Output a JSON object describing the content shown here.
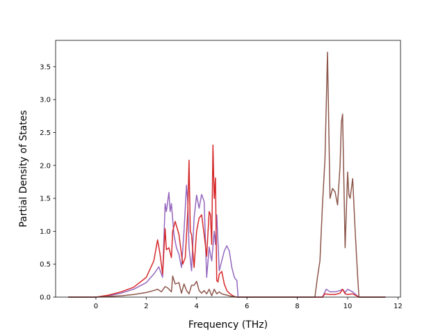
{
  "chart_data": {
    "type": "line",
    "title": "",
    "xlabel": "Frequency (THz)",
    "ylabel": "Partial Density of States",
    "xlim": [
      -1.6,
      12.1
    ],
    "ylim": [
      0,
      3.9
    ],
    "xticks": [
      0,
      2,
      4,
      6,
      8,
      10,
      12
    ],
    "xtick_labels": [
      "0",
      "2",
      "4",
      "6",
      "8",
      "10",
      "12"
    ],
    "yticks": [
      0.0,
      0.5,
      1.0,
      1.5,
      2.0,
      2.5,
      3.0,
      3.5
    ],
    "ytick_labels": [
      "0.0",
      "0.5",
      "1.0",
      "1.5",
      "2.0",
      "2.5",
      "3.0",
      "3.5"
    ],
    "grid": false,
    "legend": "none",
    "series": [
      {
        "color": "#9467bd",
        "x": [
          -1.1,
          0.0,
          0.5,
          1.0,
          1.5,
          2.0,
          2.3,
          2.5,
          2.65,
          2.75,
          2.8,
          2.9,
          2.95,
          3.0,
          3.1,
          3.2,
          3.3,
          3.4,
          3.5,
          3.6,
          3.65,
          3.7,
          3.8,
          3.9,
          4.0,
          4.1,
          4.2,
          4.3,
          4.4,
          4.5,
          4.55,
          4.6,
          4.7,
          4.75,
          4.8,
          4.9,
          5.0,
          5.1,
          5.2,
          5.3,
          5.4,
          5.5,
          5.6,
          5.65,
          5.8,
          8.6,
          9.0,
          9.15,
          9.3,
          9.5,
          9.7,
          9.8,
          9.9,
          10.0,
          10.2,
          10.35,
          10.45,
          11.5
        ],
        "y": [
          0.0,
          0.0,
          0.02,
          0.06,
          0.12,
          0.22,
          0.35,
          0.46,
          0.3,
          1.42,
          1.3,
          1.59,
          1.3,
          1.42,
          0.95,
          0.75,
          0.65,
          0.45,
          1.0,
          1.7,
          1.45,
          0.75,
          0.4,
          1.2,
          1.55,
          1.35,
          1.56,
          1.45,
          0.3,
          0.76,
          0.65,
          0.55,
          1.0,
          0.8,
          1.25,
          0.4,
          0.55,
          0.7,
          0.78,
          0.7,
          0.45,
          0.3,
          0.25,
          0.0,
          0.0,
          0.0,
          0.0,
          0.12,
          0.08,
          0.08,
          0.1,
          0.12,
          0.07,
          0.12,
          0.08,
          0.03,
          0.0,
          0.0
        ]
      },
      {
        "color": "#d62728",
        "x": [
          -1.1,
          0.0,
          0.5,
          1.0,
          1.5,
          2.0,
          2.3,
          2.45,
          2.55,
          2.65,
          2.75,
          2.8,
          2.9,
          3.0,
          3.05,
          3.15,
          3.3,
          3.45,
          3.55,
          3.65,
          3.7,
          3.75,
          3.8,
          3.9,
          4.0,
          4.1,
          4.2,
          4.3,
          4.4,
          4.5,
          4.55,
          4.6,
          4.65,
          4.7,
          4.75,
          4.8,
          4.85,
          4.9,
          5.0,
          5.1,
          5.2,
          5.3,
          5.4,
          5.5,
          5.6,
          5.8,
          8.6,
          9.0,
          9.1,
          9.3,
          9.5,
          9.7,
          9.8,
          9.9,
          10.0,
          10.2,
          10.35,
          10.45,
          11.5
        ],
        "y": [
          0.0,
          0.0,
          0.03,
          0.08,
          0.15,
          0.3,
          0.55,
          0.87,
          0.65,
          0.35,
          1.04,
          0.72,
          0.75,
          0.6,
          1.0,
          1.15,
          0.95,
          0.5,
          0.6,
          1.3,
          2.08,
          1.0,
          0.95,
          0.45,
          1.0,
          1.2,
          1.25,
          0.95,
          0.62,
          1.3,
          1.25,
          0.8,
          2.31,
          1.5,
          1.81,
          0.25,
          0.23,
          0.35,
          0.39,
          0.2,
          0.1,
          0.06,
          0.03,
          0.01,
          0.0,
          0.0,
          0.0,
          0.0,
          0.05,
          0.04,
          0.04,
          0.06,
          0.12,
          0.05,
          0.04,
          0.05,
          0.02,
          0.0,
          0.0
        ]
      },
      {
        "color": "#8c564b",
        "x": [
          -1.1,
          0.0,
          0.5,
          1.0,
          1.5,
          2.0,
          2.3,
          2.45,
          2.6,
          2.75,
          2.85,
          3.0,
          3.05,
          3.15,
          3.3,
          3.4,
          3.5,
          3.6,
          3.7,
          3.8,
          3.9,
          4.0,
          4.1,
          4.2,
          4.3,
          4.4,
          4.5,
          4.6,
          4.7,
          4.8,
          4.9,
          5.0,
          5.2,
          5.4,
          5.6,
          5.8,
          8.7,
          8.8,
          8.9,
          9.0,
          9.1,
          9.2,
          9.3,
          9.4,
          9.5,
          9.6,
          9.7,
          9.75,
          9.8,
          9.9,
          10.0,
          10.05,
          10.1,
          10.2,
          10.3,
          10.4,
          10.45,
          11.5
        ],
        "y": [
          0.0,
          0.0,
          0.01,
          0.02,
          0.04,
          0.07,
          0.1,
          0.12,
          0.08,
          0.16,
          0.14,
          0.08,
          0.32,
          0.2,
          0.22,
          0.06,
          0.2,
          0.1,
          0.05,
          0.18,
          0.18,
          0.24,
          0.1,
          0.06,
          0.1,
          0.05,
          0.12,
          0.02,
          0.12,
          0.05,
          0.08,
          0.05,
          0.03,
          0.01,
          0.0,
          0.0,
          0.0,
          0.3,
          0.55,
          1.4,
          2.1,
          3.72,
          1.5,
          1.65,
          1.6,
          1.4,
          2.0,
          2.65,
          2.78,
          0.75,
          1.9,
          1.55,
          1.5,
          1.8,
          1.0,
          0.3,
          0.0,
          0.0
        ]
      }
    ]
  }
}
